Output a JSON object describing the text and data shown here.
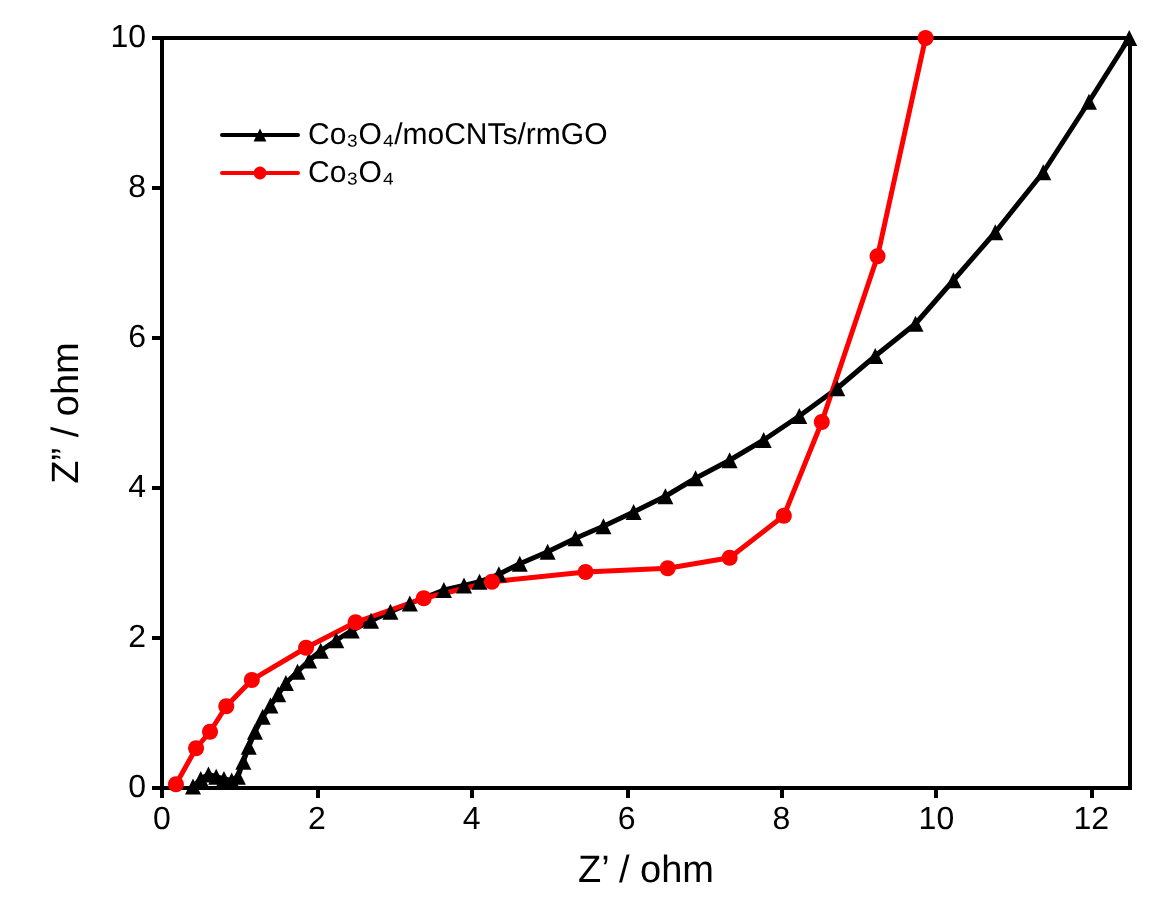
{
  "chart_data": {
    "type": "line",
    "xlabel": "Z’ / ohm",
    "ylabel": "Z” / ohm",
    "xlim": [
      0,
      12.5
    ],
    "xticks": [
      0,
      2,
      4,
      6,
      8,
      10,
      12
    ],
    "ylim": [
      0,
      10
    ],
    "yticks": [
      0,
      2,
      4,
      6,
      8,
      10
    ],
    "grid": false,
    "legend": "top left",
    "series": [
      {
        "name": "Co₃O₄/moCNTs/rmGO",
        "color": "#000000",
        "marker": "triangle",
        "x": [
          0.4,
          0.5,
          0.6,
          0.7,
          0.8,
          0.9,
          0.98,
          1.05,
          1.12,
          1.2,
          1.3,
          1.4,
          1.5,
          1.6,
          1.75,
          1.9,
          2.05,
          2.25,
          2.45,
          2.7,
          2.95,
          3.2,
          3.64,
          3.9,
          4.1,
          4.35,
          4.62,
          4.98,
          5.34,
          5.7,
          6.09,
          6.5,
          6.89,
          7.33,
          7.77,
          8.23,
          8.72,
          9.21,
          9.73,
          10.22,
          10.76,
          11.38,
          11.97,
          12.49
        ],
        "values": [
          0.02,
          0.12,
          0.18,
          0.15,
          0.12,
          0.1,
          0.15,
          0.35,
          0.55,
          0.75,
          0.95,
          1.1,
          1.25,
          1.4,
          1.55,
          1.7,
          1.83,
          1.97,
          2.1,
          2.23,
          2.35,
          2.46,
          2.64,
          2.7,
          2.75,
          2.85,
          2.99,
          3.15,
          3.33,
          3.49,
          3.68,
          3.89,
          4.13,
          4.37,
          4.64,
          4.96,
          5.33,
          5.76,
          6.19,
          6.77,
          7.41,
          8.21,
          9.15,
          10
        ]
      },
      {
        "name": "Co₃O₄",
        "color": "#ff0000",
        "marker": "circle",
        "x": [
          0.18,
          0.44,
          0.62,
          0.83,
          1.16,
          1.86,
          2.5,
          3.38,
          4.26,
          5.47,
          6.53,
          7.33,
          8.03,
          8.52,
          9.24,
          9.86
        ],
        "values": [
          0.05,
          0.53,
          0.75,
          1.09,
          1.44,
          1.87,
          2.21,
          2.53,
          2.75,
          2.88,
          2.93,
          3.07,
          3.63,
          4.88,
          7.09,
          10
        ]
      }
    ]
  }
}
